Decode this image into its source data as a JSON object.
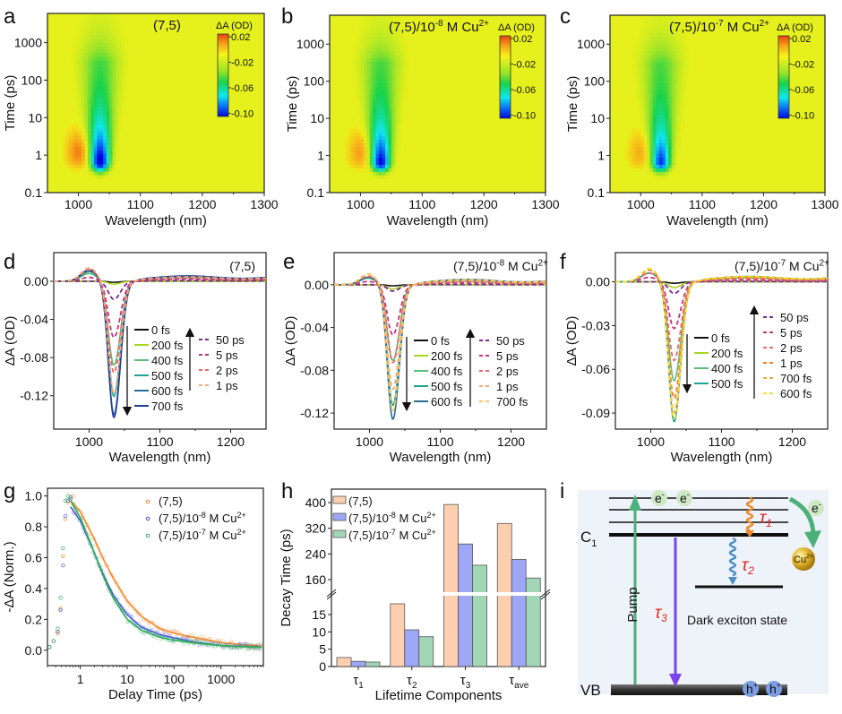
{
  "figure": {
    "panel_letters": [
      "a",
      "b",
      "c",
      "d",
      "e",
      "f",
      "g",
      "h",
      "i"
    ]
  },
  "chart_data": [
    {
      "panel": "a",
      "type": "heatmap",
      "title": "(7,5)",
      "xlabel": "Wavelength (nm)",
      "ylabel": "Time (ps)",
      "xlim": [
        950,
        1300
      ],
      "ylim": [
        0.1,
        6000
      ],
      "yscale": "log",
      "xticks": [
        1000,
        1100,
        1200,
        1300
      ],
      "yticks": [
        0.1,
        1,
        10,
        100,
        1000
      ],
      "ytick_labels": [
        "0.1",
        "1",
        "10",
        "100",
        "1000"
      ],
      "colorbar": {
        "label": "ΔA (OD)",
        "ticks": [
          "0.02",
          "-0.02",
          "-0.06",
          "-0.10"
        ],
        "range": [
          -0.1,
          0.025
        ]
      },
      "features": {
        "bleach_center_nm": 1035,
        "bleach_peak_time_ps": 0.6,
        "bleach_min": -0.1,
        "induced_absorption_center_nm": 1000,
        "induced_absorption_max": 0.015
      },
      "grid": false
    },
    {
      "panel": "b",
      "type": "heatmap",
      "title": "(7,5)/10",
      "title_sup": "-8",
      "title_suffix": " M Cu",
      "title_suffix_sup": "2+",
      "xlabel": "Wavelength (nm)",
      "ylabel": "Time (ps)",
      "xlim": [
        950,
        1300
      ],
      "ylim": [
        0.1,
        6000
      ],
      "yscale": "log",
      "xticks": [
        1000,
        1100,
        1200,
        1300
      ],
      "yticks": [
        0.1,
        1,
        10,
        100,
        1000
      ],
      "ytick_labels": [
        "0.1",
        "1",
        "10",
        "100",
        "1000"
      ],
      "colorbar": {
        "label": "ΔA (OD)",
        "ticks": [
          "0.02",
          "-0.02",
          "-0.06",
          "-0.10"
        ],
        "range": [
          -0.1,
          0.025
        ]
      },
      "features": {
        "bleach_center_nm": 1033,
        "bleach_peak_time_ps": 0.6,
        "bleach_min": -0.09,
        "induced_absorption_center_nm": 1000,
        "induced_absorption_max": 0.012
      },
      "grid": false
    },
    {
      "panel": "c",
      "type": "heatmap",
      "title": "(7,5)/10",
      "title_sup": "-7",
      "title_suffix": " M Cu",
      "title_suffix_sup": "2+",
      "xlabel": "Wavelength (nm)",
      "ylabel": "Time (ps)",
      "xlim": [
        950,
        1300
      ],
      "ylim": [
        0.1,
        6000
      ],
      "yscale": "log",
      "xticks": [
        1000,
        1100,
        1200,
        1300
      ],
      "yticks": [
        0.1,
        1,
        10,
        100,
        1000
      ],
      "ytick_labels": [
        "0.1",
        "1",
        "10",
        "100",
        "1000"
      ],
      "colorbar": {
        "label": "ΔA (OD)",
        "ticks": [
          "0.02",
          "-0.02",
          "-0.06",
          "-0.10"
        ],
        "range": [
          -0.1,
          0.025
        ]
      },
      "features": {
        "bleach_center_nm": 1033,
        "bleach_peak_time_ps": 0.6,
        "bleach_min": -0.075,
        "induced_absorption_center_nm": 1000,
        "induced_absorption_max": 0.01
      },
      "grid": false
    },
    {
      "panel": "d",
      "type": "line",
      "title": "(7,5)",
      "xlabel": "Wavelength (nm)",
      "ylabel": "ΔA (OD)",
      "xlim": [
        950,
        1250
      ],
      "ylim": [
        -0.155,
        0.03
      ],
      "xticks": [
        1000,
        1100,
        1200
      ],
      "yticks": [
        0.0,
        -0.04,
        -0.08,
        -0.12
      ],
      "ytick_labels": [
        "0.00",
        "-0.04",
        "-0.08",
        "-0.12"
      ],
      "peak_nm": 1035,
      "series": [
        {
          "name": "0 fs",
          "style": "solid",
          "color": "#111111",
          "min": -0.001,
          "bump": 0.0
        },
        {
          "name": "200 fs",
          "style": "solid",
          "color": "#a8d520",
          "min": -0.003,
          "bump": 0.0
        },
        {
          "name": "400 fs",
          "style": "solid",
          "color": "#5dbf7e",
          "min": -0.088,
          "bump": 0.008
        },
        {
          "name": "500 fs",
          "style": "solid",
          "color": "#22a394",
          "min": -0.121,
          "bump": 0.01
        },
        {
          "name": "600 fs",
          "style": "solid",
          "color": "#2a6c93",
          "min": -0.14,
          "bump": 0.011
        },
        {
          "name": "700 fs",
          "style": "solid",
          "color": "#1f3f9d",
          "min": -0.143,
          "bump": 0.012
        },
        {
          "name": "50 ps",
          "style": "dashed",
          "color": "#7b2a96",
          "min": -0.019,
          "bump": 0.0
        },
        {
          "name": "5 ps",
          "style": "dashed",
          "color": "#c2337f",
          "min": -0.059,
          "bump": 0.004
        },
        {
          "name": "2 ps",
          "style": "dashed",
          "color": "#f06464",
          "min": -0.096,
          "bump": 0.012
        },
        {
          "name": "1 ps",
          "style": "dashed",
          "color": "#f9a870",
          "min": -0.118,
          "bump": 0.014
        }
      ],
      "legend": {
        "solid": [
          "0 fs",
          "200 fs",
          "400 fs",
          "500 fs",
          "600 fs",
          "700 fs"
        ],
        "dashed": [
          "50 ps",
          "5 ps",
          "2 ps",
          "1 ps"
        ],
        "arrow_solid": "down",
        "arrow_dashed": "up"
      },
      "grid": false
    },
    {
      "panel": "e",
      "type": "line",
      "title": "(7,5)/10",
      "title_sup": "-8",
      "title_suffix": " M Cu",
      "title_suffix_sup": "2+",
      "xlabel": "Wavelength (nm)",
      "ylabel": "ΔA (OD)",
      "xlim": [
        950,
        1250
      ],
      "ylim": [
        -0.135,
        0.03
      ],
      "xticks": [
        1000,
        1100,
        1200
      ],
      "yticks": [
        0.0,
        -0.04,
        -0.08,
        -0.12
      ],
      "ytick_labels": [
        "0.00",
        "-0.04",
        "-0.08",
        "-0.12"
      ],
      "peak_nm": 1033,
      "series": [
        {
          "name": "0 fs",
          "style": "solid",
          "color": "#111111",
          "min": -0.001,
          "bump": 0.0
        },
        {
          "name": "200 fs",
          "style": "solid",
          "color": "#a8d520",
          "min": -0.004,
          "bump": 0.0
        },
        {
          "name": "400 fs",
          "style": "solid",
          "color": "#5dbf7e",
          "min": -0.071,
          "bump": 0.006
        },
        {
          "name": "500 fs",
          "style": "solid",
          "color": "#22a394",
          "min": -0.113,
          "bump": 0.007
        },
        {
          "name": "600 fs",
          "style": "solid",
          "color": "#2a6c93",
          "min": -0.126,
          "bump": 0.007
        },
        {
          "name": "50 ps",
          "style": "dashed",
          "color": "#7b2a96",
          "min": -0.006,
          "bump": 0.0
        },
        {
          "name": "5 ps",
          "style": "dashed",
          "color": "#c2337f",
          "min": -0.047,
          "bump": 0.003
        },
        {
          "name": "2 ps",
          "style": "dashed",
          "color": "#f06464",
          "min": -0.073,
          "bump": 0.008
        },
        {
          "name": "1 ps",
          "style": "dashed",
          "color": "#f9a870",
          "min": -0.098,
          "bump": 0.01
        },
        {
          "name": "700 fs",
          "style": "dashed",
          "color": "#f6c85a",
          "min": -0.118,
          "bump": 0.01
        }
      ],
      "legend": {
        "solid": [
          "0 fs",
          "200 fs",
          "400 fs",
          "500 fs",
          "600 fs"
        ],
        "dashed": [
          "50 ps",
          "5 ps",
          "2 ps",
          "1 ps",
          "700 fs"
        ],
        "arrow_solid": "down",
        "arrow_dashed": "up"
      },
      "grid": false
    },
    {
      "panel": "f",
      "type": "line",
      "title": "(7,5)/10",
      "title_sup": "-7",
      "title_suffix": " M Cu",
      "title_suffix_sup": "2+",
      "xlabel": "Wavelength (nm)",
      "ylabel": "ΔA (OD)",
      "xlim": [
        950,
        1250
      ],
      "ylim": [
        -0.101,
        0.02
      ],
      "xticks": [
        1000,
        1100,
        1200
      ],
      "yticks": [
        0.0,
        -0.03,
        -0.06,
        -0.09
      ],
      "ytick_labels": [
        "0.00",
        "-0.03",
        "-0.06",
        "-0.09"
      ],
      "peak_nm": 1033,
      "series": [
        {
          "name": "0 fs",
          "style": "solid",
          "color": "#111111",
          "min": -0.001,
          "bump": 0.0
        },
        {
          "name": "200 fs",
          "style": "solid",
          "color": "#a8d520",
          "min": -0.004,
          "bump": 0.0
        },
        {
          "name": "400 fs",
          "style": "solid",
          "color": "#5dbf7e",
          "min": -0.068,
          "bump": 0.006
        },
        {
          "name": "500 fs",
          "style": "solid",
          "color": "#22a394",
          "min": -0.096,
          "bump": 0.006
        },
        {
          "name": "50 ps",
          "style": "dashed",
          "color": "#7b2a96",
          "min": -0.008,
          "bump": 0.0
        },
        {
          "name": "5 ps",
          "style": "dashed",
          "color": "#c2337f",
          "min": -0.032,
          "bump": 0.003
        },
        {
          "name": "2 ps",
          "style": "dashed",
          "color": "#f06464",
          "min": -0.054,
          "bump": 0.006
        },
        {
          "name": "1 ps",
          "style": "dashed",
          "color": "#f47c2a",
          "min": -0.08,
          "bump": 0.008
        },
        {
          "name": "700 fs",
          "style": "dashed",
          "color": "#f7a33c",
          "min": -0.09,
          "bump": 0.009
        },
        {
          "name": "600 fs",
          "style": "dashed",
          "color": "#f2e12c",
          "min": -0.094,
          "bump": 0.009
        }
      ],
      "legend": {
        "solid": [
          "0 fs",
          "200 fs",
          "400 fs",
          "500 fs"
        ],
        "dashed": [
          "50 ps",
          "5 ps",
          "2 ps",
          "1 ps",
          "700 fs",
          "600 fs"
        ],
        "arrow_solid": "down",
        "arrow_dashed": "up"
      },
      "grid": false
    },
    {
      "panel": "g",
      "type": "scatter",
      "xlabel": "Delay Time (ps)",
      "ylabel": "-ΔA (Norm.)",
      "xscale": "log",
      "xlim": [
        0.2,
        8000
      ],
      "ylim": [
        -0.1,
        1.05
      ],
      "xticks": [
        1,
        10,
        100,
        1000
      ],
      "yticks": [
        0.0,
        0.2,
        0.4,
        0.6,
        0.8,
        1.0
      ],
      "ytick_labels": [
        "0.0",
        "0.2",
        "0.4",
        "0.6",
        "0.8",
        "1.0"
      ],
      "series": [
        {
          "name": "(7,5)",
          "name_sup": "",
          "name_suffix": "",
          "name_suffix_sup": "",
          "color": "#f28a30",
          "rise": [
            [
              0.22,
              0.02
            ],
            [
              0.27,
              0.06
            ],
            [
              0.33,
              0.11
            ],
            [
              0.38,
              0.27
            ],
            [
              0.43,
              0.61
            ],
            [
              0.48,
              0.85
            ],
            [
              0.55,
              0.96
            ],
            [
              0.62,
              0.99
            ],
            [
              0.7,
              1.0
            ]
          ],
          "fit": [
            [
              0.62,
              0.97
            ],
            [
              1,
              0.9
            ],
            [
              2,
              0.72
            ],
            [
              3,
              0.6
            ],
            [
              5,
              0.47
            ],
            [
              10,
              0.32
            ],
            [
              20,
              0.22
            ],
            [
              50,
              0.14
            ],
            [
              100,
              0.11
            ],
            [
              300,
              0.08
            ],
            [
              1000,
              0.05
            ],
            [
              3000,
              0.035
            ],
            [
              7500,
              0.03
            ]
          ]
        },
        {
          "name": "(7,5)/10",
          "name_sup": "-8",
          "name_suffix": " M Cu",
          "name_suffix_sup": "2+",
          "color": "#4a57e0",
          "rise": [
            [
              0.22,
              0.02
            ],
            [
              0.27,
              0.06
            ],
            [
              0.33,
              0.12
            ],
            [
              0.38,
              0.26
            ],
            [
              0.43,
              0.55
            ],
            [
              0.48,
              0.87
            ],
            [
              0.55,
              0.97
            ],
            [
              0.62,
              0.99
            ]
          ],
          "fit": [
            [
              0.62,
              0.93
            ],
            [
              1,
              0.84
            ],
            [
              2,
              0.63
            ],
            [
              3,
              0.5
            ],
            [
              5,
              0.36
            ],
            [
              10,
              0.23
            ],
            [
              20,
              0.15
            ],
            [
              50,
              0.1
            ],
            [
              100,
              0.08
            ],
            [
              300,
              0.05
            ],
            [
              1000,
              0.03
            ],
            [
              3000,
              0.025
            ],
            [
              7500,
              0.02
            ]
          ]
        },
        {
          "name": "(7,5)/10",
          "name_sup": "-7",
          "name_suffix": " M Cu",
          "name_suffix_sup": "2+",
          "color": "#2fae55",
          "rise": [
            [
              0.22,
              0.02
            ],
            [
              0.27,
              0.06
            ],
            [
              0.33,
              0.14
            ],
            [
              0.38,
              0.34
            ],
            [
              0.43,
              0.66
            ],
            [
              0.48,
              0.97
            ],
            [
              0.55,
              1.0
            ],
            [
              0.62,
              0.98
            ]
          ],
          "fit": [
            [
              0.62,
              0.97
            ],
            [
              1,
              0.86
            ],
            [
              2,
              0.63
            ],
            [
              3,
              0.49
            ],
            [
              5,
              0.34
            ],
            [
              10,
              0.2
            ],
            [
              20,
              0.13
            ],
            [
              50,
              0.085
            ],
            [
              100,
              0.065
            ],
            [
              300,
              0.045
            ],
            [
              1000,
              0.03
            ],
            [
              3000,
              0.022
            ],
            [
              7500,
              0.02
            ]
          ]
        }
      ],
      "legend_position": "top-right",
      "grid": false
    },
    {
      "panel": "h",
      "type": "bar",
      "xlabel": "Lifetime Components",
      "ylabel": "Decay Time (ps)",
      "categories": [
        "τ1",
        "τ2",
        "τ3",
        "τave"
      ],
      "category_base": [
        "τ",
        "τ",
        "τ",
        "τ"
      ],
      "category_sub": [
        "1",
        "2",
        "3",
        "ave"
      ],
      "axis_break": {
        "lower": [
          0,
          19
        ],
        "upper": [
          125,
          415
        ]
      },
      "yticks_lower": [
        0,
        5,
        10,
        15
      ],
      "yticks_upper": [
        160,
        240,
        320,
        400
      ],
      "series": [
        {
          "name": "(7,5)",
          "name_sup": "",
          "name_suffix": "",
          "name_suffix_sup": "",
          "color": "#fdcfb0",
          "values": [
            2.6,
            18.1,
            394,
            335
          ]
        },
        {
          "name": "(7,5)/10",
          "name_sup": "-8",
          "name_suffix": " M Cu",
          "name_suffix_sup": "2+",
          "color": "#9ea6f6",
          "values": [
            1.5,
            10.6,
            271,
            223
          ]
        },
        {
          "name": "(7,5)/10",
          "name_sup": "-7",
          "name_suffix": " M Cu",
          "name_suffix_sup": "2+",
          "color": "#a2d6b4",
          "values": [
            1.3,
            8.6,
            205,
            165
          ]
        }
      ],
      "legend_position": "top-left",
      "grid": false
    }
  ],
  "diagram_i": {
    "level_c1_label": "C",
    "level_c1_sub": "1",
    "level_vb_label": "VB",
    "pump_label": "Pump",
    "tau1_label": "τ",
    "tau1_sub": "1",
    "tau2_label": "τ",
    "tau2_sub": "2",
    "tau3_label": "τ",
    "tau3_sub": "3",
    "dark_state_label": "Dark exciton state",
    "electron_label": "e",
    "electron_sup": "-",
    "hole_label": "h",
    "hole_sup": "+",
    "cu_label": "Cu",
    "cu_sup": "2+",
    "colors": {
      "pump": "#4db07a",
      "tau3": "#7a45f0",
      "tau1": "#f0882a",
      "tau2": "#4a90c8",
      "tau_text": "#e8231c",
      "transfer": "#4db07a",
      "electron_fill": "#cfe8c4",
      "hole_fill": "#7d9de0",
      "cu_fill": "#e3b62a",
      "background": "#eef2f9"
    }
  }
}
